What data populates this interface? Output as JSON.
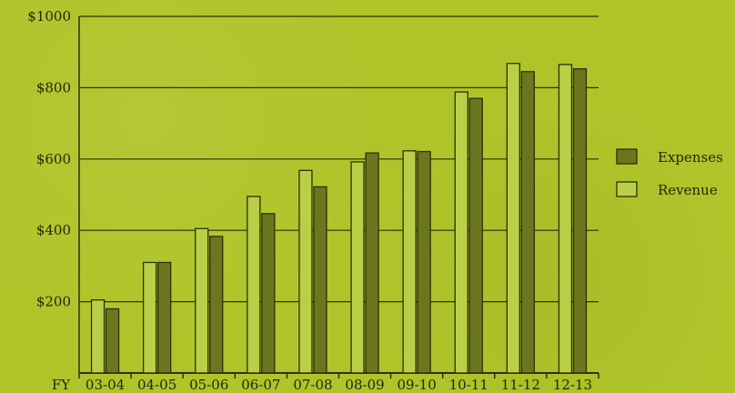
{
  "chart_data": {
    "type": "bar",
    "x_label_prefix": "FY",
    "categories": [
      "03-04",
      "04-05",
      "05-06",
      "06-07",
      "07-08",
      "08-09",
      "09-10",
      "10-11",
      "11-12",
      "12-13"
    ],
    "series": [
      {
        "name": "Revenue",
        "values": [
          205,
          310,
          405,
          495,
          568,
          592,
          623,
          788,
          868,
          865
        ],
        "color": "#b9cf47"
      },
      {
        "name": "Expenses",
        "values": [
          180,
          310,
          383,
          447,
          522,
          617,
          621,
          770,
          845,
          853
        ],
        "color": "#6b761f"
      }
    ],
    "y_ticks": [
      200,
      400,
      600,
      800,
      1000
    ],
    "y_tick_labels": [
      "$200",
      "$400",
      "$600",
      "$800",
      "$1000"
    ],
    "ylim": [
      0,
      1000
    ],
    "grid": true,
    "legend": {
      "position": "right",
      "items": [
        "Expenses",
        "Revenue"
      ]
    },
    "colors": {
      "background": "#b0c42a",
      "axis": "#2a3209",
      "grid": "#2a3209",
      "text": "#1f2608"
    }
  }
}
